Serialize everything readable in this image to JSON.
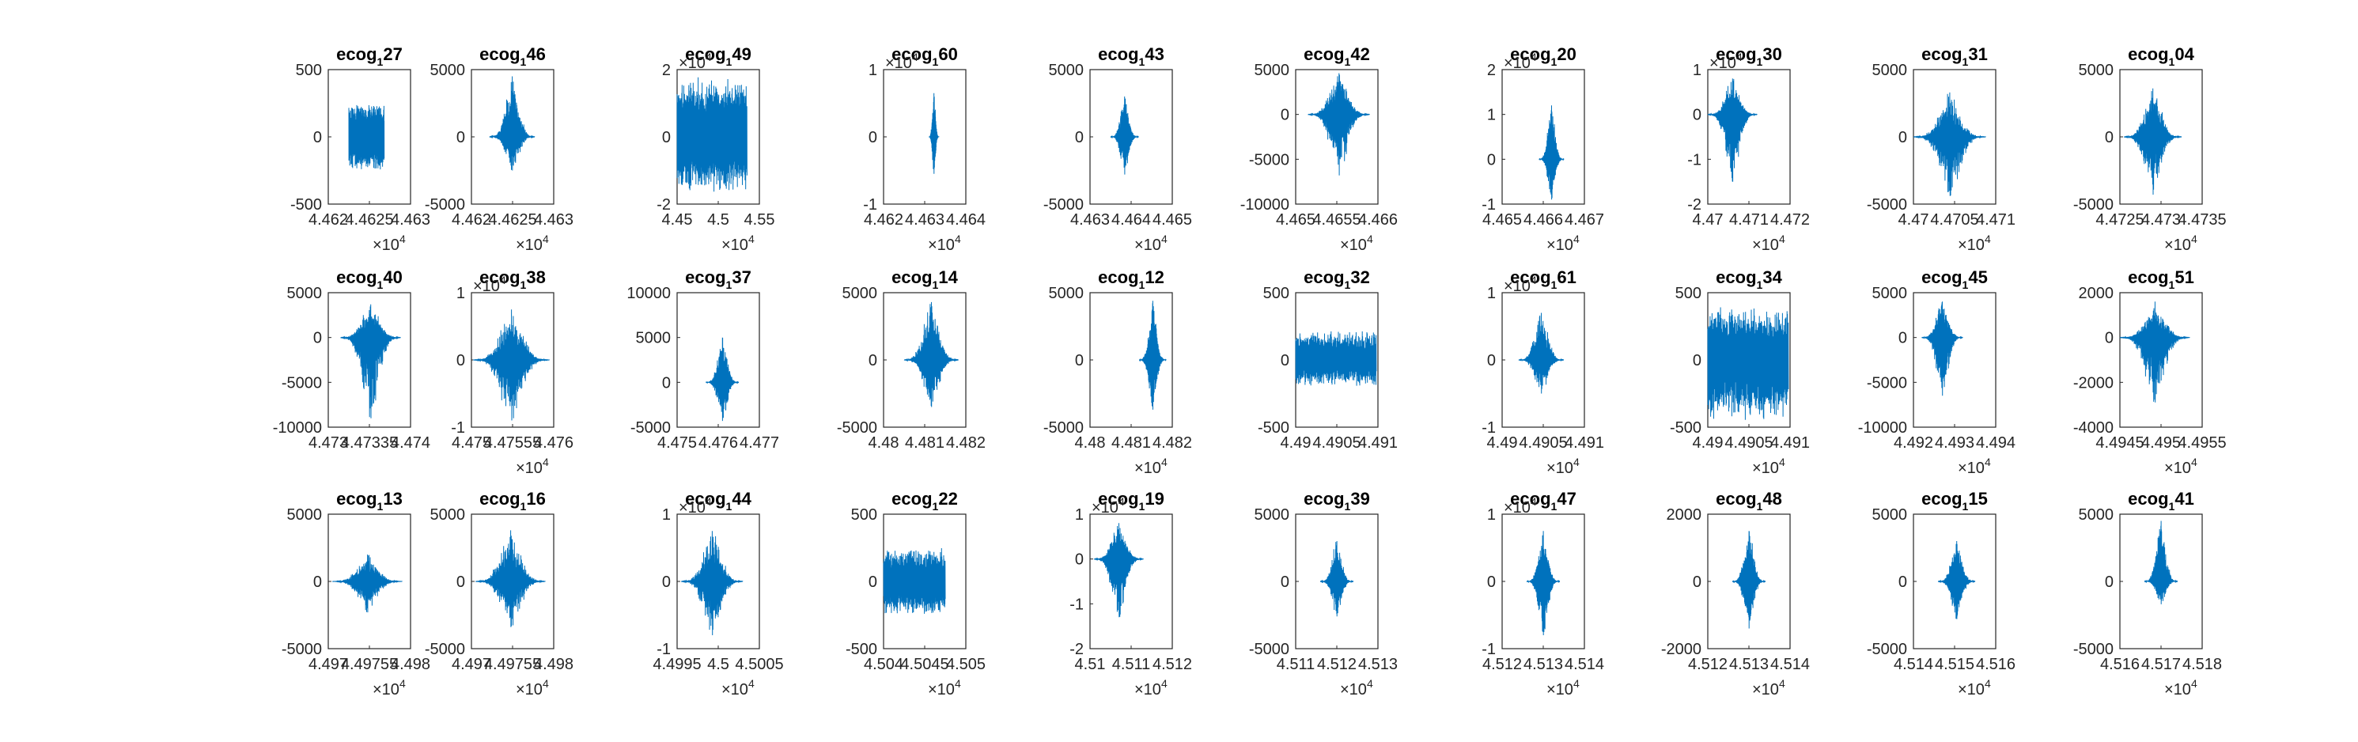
{
  "figure": {
    "line_color": "#0072BD",
    "axis_color": "#262626",
    "background": "#ffffff"
  },
  "chart_data": [
    {
      "type": "line",
      "title": "ecog_1 27",
      "title_base": "ecog",
      "title_sub": "1",
      "title_suffix": "27",
      "xlim": [
        4.462,
        4.463
      ],
      "ylim": [
        -500,
        500
      ],
      "xticks": [
        "4.462",
        "4.4625",
        "4.463"
      ],
      "yticks": [
        "-500",
        "0",
        "500"
      ],
      "x_multiplier": "10^4",
      "y_multiplier": "",
      "signal": {
        "x_range": [
          4.46225,
          4.46268
        ],
        "amplitude": [
          250,
          250
        ],
        "kind": "noise"
      }
    },
    {
      "type": "line",
      "title": "ecog_1 46",
      "title_base": "ecog",
      "title_sub": "1",
      "title_suffix": "46",
      "xlim": [
        4.462,
        4.463
      ],
      "ylim": [
        -5000,
        5000
      ],
      "xticks": [
        "4.462",
        "4.4625",
        "4.463"
      ],
      "yticks": [
        "-5000",
        "0",
        "5000"
      ],
      "x_multiplier": "10^4",
      "y_multiplier": "",
      "signal": {
        "x_range": [
          4.46222,
          4.46277
        ],
        "amplitude": [
          4500,
          -2500
        ],
        "kind": "burst"
      }
    },
    {
      "type": "line",
      "title": "ecog_1 49",
      "title_base": "ecog",
      "title_sub": "1",
      "title_suffix": "49",
      "xlim": [
        4.45,
        4.55
      ],
      "ylim": [
        -2,
        2
      ],
      "xticks": [
        "4.45",
        "4.5",
        "4.55"
      ],
      "yticks": [
        "-2",
        "0",
        "2"
      ],
      "x_multiplier": "10^4",
      "y_multiplier": "10^4",
      "signal": {
        "x_range": [
          4.45,
          4.535
        ],
        "amplitude": [
          1.8,
          -1.7
        ],
        "kind": "noise"
      }
    },
    {
      "type": "line",
      "title": "ecog_1 60",
      "title_base": "ecog",
      "title_sub": "1",
      "title_suffix": "60",
      "xlim": [
        4.462,
        4.464
      ],
      "ylim": [
        -1,
        1
      ],
      "xticks": [
        "4.462",
        "4.463",
        "4.464"
      ],
      "yticks": [
        "-1",
        "0",
        "1"
      ],
      "x_multiplier": "10^4",
      "y_multiplier": "10^4",
      "signal": {
        "x_range": [
          4.4631,
          4.46335
        ],
        "amplitude": [
          0.65,
          -0.55
        ],
        "kind": "burst"
      }
    },
    {
      "type": "line",
      "title": "ecog_1 43",
      "title_base": "ecog",
      "title_sub": "1",
      "title_suffix": "43",
      "xlim": [
        4.463,
        4.465
      ],
      "ylim": [
        -5000,
        5000
      ],
      "xticks": [
        "4.463",
        "4.464",
        "4.465"
      ],
      "yticks": [
        "-5000",
        "0",
        "5000"
      ],
      "x_multiplier": "10^4",
      "y_multiplier": "",
      "signal": {
        "x_range": [
          4.4635,
          4.46418
        ],
        "amplitude": [
          3000,
          -2800
        ],
        "kind": "burst"
      }
    },
    {
      "type": "line",
      "title": "ecog_1 42",
      "title_base": "ecog",
      "title_sub": "1",
      "title_suffix": "42",
      "xlim": [
        4.465,
        4.466
      ],
      "ylim": [
        -10000,
        5000
      ],
      "xticks": [
        "4.465",
        "4.4655",
        "4.466"
      ],
      "yticks": [
        "-10000",
        "-5000",
        "0",
        "5000"
      ],
      "x_multiplier": "10^4",
      "y_multiplier": "",
      "signal": {
        "x_range": [
          4.46515,
          4.4659
        ],
        "amplitude": [
          4600,
          -6800
        ],
        "kind": "burst"
      }
    },
    {
      "type": "line",
      "title": "ecog_1 20",
      "title_base": "ecog",
      "title_sub": "1",
      "title_suffix": "20",
      "xlim": [
        4.465,
        4.467
      ],
      "ylim": [
        -1,
        2
      ],
      "xticks": [
        "4.465",
        "4.466",
        "4.467"
      ],
      "yticks": [
        "-1",
        "0",
        "1",
        "2"
      ],
      "x_multiplier": "10^4",
      "y_multiplier": "10^4",
      "signal": {
        "x_range": [
          4.4659,
          4.4665
        ],
        "amplitude": [
          1.2,
          -0.9
        ],
        "kind": "burst"
      }
    },
    {
      "type": "line",
      "title": "ecog_1 30",
      "title_base": "ecog",
      "title_sub": "1",
      "title_suffix": "30",
      "xlim": [
        4.47,
        4.472
      ],
      "ylim": [
        -2,
        1
      ],
      "xticks": [
        "4.47",
        "4.471",
        "4.472"
      ],
      "yticks": [
        "-2",
        "-1",
        "0",
        "1"
      ],
      "x_multiplier": "10^4",
      "y_multiplier": "10^4",
      "signal": {
        "x_range": [
          4.47,
          4.4712
        ],
        "amplitude": [
          0.8,
          -1.5
        ],
        "kind": "burst"
      }
    },
    {
      "type": "line",
      "title": "ecog_1 31",
      "title_base": "ecog",
      "title_sub": "1",
      "title_suffix": "31",
      "xlim": [
        4.47,
        4.471
      ],
      "ylim": [
        -5000,
        5000
      ],
      "xticks": [
        "4.47",
        "4.4705",
        "4.471"
      ],
      "yticks": [
        "-5000",
        "0",
        "5000"
      ],
      "x_multiplier": "10^4",
      "y_multiplier": "",
      "signal": {
        "x_range": [
          4.47,
          4.47088
        ],
        "amplitude": [
          3300,
          -4400
        ],
        "kind": "burst"
      }
    },
    {
      "type": "line",
      "title": "ecog_1 04",
      "title_base": "ecog",
      "title_sub": "1",
      "title_suffix": "04",
      "xlim": [
        4.4725,
        4.4735
      ],
      "ylim": [
        -5000,
        5000
      ],
      "xticks": [
        "4.4725",
        "4.473",
        "4.4735"
      ],
      "yticks": [
        "-5000",
        "0",
        "5000"
      ],
      "x_multiplier": "10^4",
      "y_multiplier": "",
      "signal": {
        "x_range": [
          4.47255,
          4.47325
        ],
        "amplitude": [
          3600,
          -4300
        ],
        "kind": "burst"
      }
    },
    {
      "type": "line",
      "title": "ecog_1 40",
      "title_base": "ecog",
      "title_sub": "1",
      "title_suffix": "40",
      "xlim": [
        4.473,
        4.474
      ],
      "ylim": [
        -10000,
        5000
      ],
      "xticks": [
        "4.473",
        "4.47335",
        "4.474"
      ],
      "yticks": [
        "-10000",
        "-5000",
        "0",
        "5000"
      ],
      "x_multiplier": "",
      "y_multiplier": "",
      "signal": {
        "x_range": [
          4.47315,
          4.47388
        ],
        "amplitude": [
          3700,
          -9000
        ],
        "kind": "burst"
      }
    },
    {
      "type": "line",
      "title": "ecog_1 38",
      "title_base": "ecog",
      "title_sub": "1",
      "title_suffix": "38",
      "xlim": [
        4.475,
        4.476
      ],
      "ylim": [
        -1,
        1
      ],
      "xticks": [
        "4.475",
        "4.47555",
        "4.476"
      ],
      "yticks": [
        "-1",
        "0",
        "1"
      ],
      "x_multiplier": "10^4",
      "y_multiplier": "10^4",
      "signal": {
        "x_range": [
          4.47502,
          4.47595
        ],
        "amplitude": [
          0.75,
          -0.9
        ],
        "kind": "burst"
      }
    },
    {
      "type": "line",
      "title": "ecog_1 37",
      "title_base": "ecog",
      "title_sub": "1",
      "title_suffix": "37",
      "xlim": [
        4.475,
        4.477
      ],
      "ylim": [
        -5000,
        10000
      ],
      "xticks": [
        "4.475",
        "4.476",
        "4.477"
      ],
      "yticks": [
        "-5000",
        "0",
        "5000",
        "10000"
      ],
      "x_multiplier": "",
      "y_multiplier": "",
      "signal": {
        "x_range": [
          4.4757,
          4.4765
        ],
        "amplitude": [
          5000,
          -4300
        ],
        "kind": "burst"
      }
    },
    {
      "type": "line",
      "title": "ecog_1 14",
      "title_base": "ecog",
      "title_sub": "1",
      "title_suffix": "14",
      "xlim": [
        4.48,
        4.482
      ],
      "ylim": [
        -5000,
        5000
      ],
      "xticks": [
        "4.48",
        "4.481",
        "4.482"
      ],
      "yticks": [
        "-5000",
        "0",
        "5000"
      ],
      "x_multiplier": "",
      "y_multiplier": "",
      "signal": {
        "x_range": [
          4.4805,
          4.48182
        ],
        "amplitude": [
          4300,
          -3500
        ],
        "kind": "burst"
      }
    },
    {
      "type": "line",
      "title": "ecog_1 12",
      "title_base": "ecog",
      "title_sub": "1",
      "title_suffix": "12",
      "xlim": [
        4.48,
        4.482
      ],
      "ylim": [
        -5000,
        5000
      ],
      "xticks": [
        "4.48",
        "4.481",
        "4.482"
      ],
      "yticks": [
        "-5000",
        "0",
        "5000"
      ],
      "x_multiplier": "10^4",
      "y_multiplier": "",
      "signal": {
        "x_range": [
          4.4812,
          4.48185
        ],
        "amplitude": [
          4400,
          -3700
        ],
        "kind": "burst"
      }
    },
    {
      "type": "line",
      "title": "ecog_1 32",
      "title_base": "ecog",
      "title_sub": "1",
      "title_suffix": "32",
      "xlim": [
        4.49,
        4.491
      ],
      "ylim": [
        -500,
        500
      ],
      "xticks": [
        "4.49",
        "4.4905",
        "4.491"
      ],
      "yticks": [
        "-500",
        "0",
        "500"
      ],
      "x_multiplier": "",
      "y_multiplier": "",
      "signal": {
        "x_range": [
          4.49,
          4.49098
        ],
        "amplitude": [
          220,
          -200
        ],
        "kind": "noise"
      }
    },
    {
      "type": "line",
      "title": "ecog_1 61",
      "title_base": "ecog",
      "title_sub": "1",
      "title_suffix": "61",
      "xlim": [
        4.49,
        4.491
      ],
      "ylim": [
        -1,
        1
      ],
      "xticks": [
        "4.49",
        "4.4905",
        "4.491"
      ],
      "yticks": [
        "-1",
        "0",
        "1"
      ],
      "x_multiplier": "10^4",
      "y_multiplier": "10^4",
      "signal": {
        "x_range": [
          4.4902,
          4.49075
        ],
        "amplitude": [
          0.7,
          -0.5
        ],
        "kind": "burst"
      }
    },
    {
      "type": "line",
      "title": "ecog_1 34",
      "title_base": "ecog",
      "title_sub": "1",
      "title_suffix": "34",
      "xlim": [
        4.49,
        4.491
      ],
      "ylim": [
        -500,
        500
      ],
      "xticks": [
        "4.49",
        "4.4905",
        "4.491"
      ],
      "yticks": [
        "-500",
        "0",
        "500"
      ],
      "x_multiplier": "10^4",
      "y_multiplier": "",
      "signal": {
        "x_range": [
          4.49,
          4.49098
        ],
        "amplitude": [
          400,
          -450
        ],
        "kind": "noise"
      }
    },
    {
      "type": "line",
      "title": "ecog_1 45",
      "title_base": "ecog",
      "title_sub": "1",
      "title_suffix": "45",
      "xlim": [
        4.492,
        4.494
      ],
      "ylim": [
        -10000,
        5000
      ],
      "xticks": [
        "4.492",
        "4.493",
        "4.494"
      ],
      "yticks": [
        "-10000",
        "-5000",
        "0",
        "5000"
      ],
      "x_multiplier": "10^4",
      "y_multiplier": "",
      "signal": {
        "x_range": [
          4.4922,
          4.4932
        ],
        "amplitude": [
          4000,
          -6500
        ],
        "kind": "burst"
      }
    },
    {
      "type": "line",
      "title": "ecog_1 51",
      "title_base": "ecog",
      "title_sub": "1",
      "title_suffix": "51",
      "xlim": [
        4.4945,
        4.4955
      ],
      "ylim": [
        -4000,
        2000
      ],
      "xticks": [
        "4.4945",
        "4.495",
        "4.4955"
      ],
      "yticks": [
        "-4000",
        "-2000",
        "0",
        "2000"
      ],
      "x_multiplier": "10^4",
      "y_multiplier": "",
      "signal": {
        "x_range": [
          4.4945,
          4.49535
        ],
        "amplitude": [
          1600,
          -2900
        ],
        "kind": "burst"
      }
    },
    {
      "type": "line",
      "title": "ecog_1 13",
      "title_base": "ecog",
      "title_sub": "1",
      "title_suffix": "13",
      "xlim": [
        4.497,
        4.498
      ],
      "ylim": [
        -5000,
        5000
      ],
      "xticks": [
        "4.497",
        "4.49755",
        "4.498"
      ],
      "yticks": [
        "-5000",
        "0",
        "5000"
      ],
      "x_multiplier": "10^4",
      "y_multiplier": "",
      "signal": {
        "x_range": [
          4.49705,
          4.4979
        ],
        "amplitude": [
          2000,
          -2300
        ],
        "kind": "burst"
      }
    },
    {
      "type": "line",
      "title": "ecog_1 16",
      "title_base": "ecog",
      "title_sub": "1",
      "title_suffix": "16",
      "xlim": [
        4.497,
        4.498
      ],
      "ylim": [
        -5000,
        5000
      ],
      "xticks": [
        "4.497",
        "4.49755",
        "4.498"
      ],
      "yticks": [
        "-5000",
        "0",
        "5000"
      ],
      "x_multiplier": "10^4",
      "y_multiplier": "",
      "signal": {
        "x_range": [
          4.49705,
          4.4979
        ],
        "amplitude": [
          3800,
          -3400
        ],
        "kind": "burst"
      }
    },
    {
      "type": "line",
      "title": "ecog_1 44",
      "title_base": "ecog",
      "title_sub": "1",
      "title_suffix": "44",
      "xlim": [
        4.4995,
        4.5005
      ],
      "ylim": [
        -1,
        1
      ],
      "xticks": [
        "4.4995",
        "4.5",
        "4.5005"
      ],
      "yticks": [
        "-1",
        "0",
        "1"
      ],
      "x_multiplier": "10^4",
      "y_multiplier": "10^4",
      "signal": {
        "x_range": [
          4.49955,
          4.5003
        ],
        "amplitude": [
          0.75,
          -0.8
        ],
        "kind": "burst"
      }
    },
    {
      "type": "line",
      "title": "ecog_1 22",
      "title_base": "ecog",
      "title_sub": "1",
      "title_suffix": "22",
      "xlim": [
        4.504,
        4.505
      ],
      "ylim": [
        -500,
        500
      ],
      "xticks": [
        "4.504",
        "4.5045",
        "4.505"
      ],
      "yticks": [
        "-500",
        "0",
        "500"
      ],
      "x_multiplier": "10^4",
      "y_multiplier": "",
      "signal": {
        "x_range": [
          4.504,
          4.50475
        ],
        "amplitude": [
          250,
          -250
        ],
        "kind": "noise"
      }
    },
    {
      "type": "line",
      "title": "ecog_1 19",
      "title_base": "ecog",
      "title_sub": "1",
      "title_suffix": "19",
      "xlim": [
        4.51,
        4.512
      ],
      "ylim": [
        -2,
        1
      ],
      "xticks": [
        "4.51",
        "4.511",
        "4.512"
      ],
      "yticks": [
        "-2",
        "-1",
        "0",
        "1"
      ],
      "x_multiplier": "10^4",
      "y_multiplier": "10^4",
      "signal": {
        "x_range": [
          4.5101,
          4.5113
        ],
        "amplitude": [
          0.8,
          -1.3
        ],
        "kind": "burst"
      }
    },
    {
      "type": "line",
      "title": "ecog_1 39",
      "title_base": "ecog",
      "title_sub": "1",
      "title_suffix": "39",
      "xlim": [
        4.511,
        4.513
      ],
      "ylim": [
        -5000,
        5000
      ],
      "xticks": [
        "4.511",
        "4.512",
        "4.513"
      ],
      "yticks": [
        "-5000",
        "0",
        "5000"
      ],
      "x_multiplier": "10^4",
      "y_multiplier": "",
      "signal": {
        "x_range": [
          4.5116,
          4.5124
        ],
        "amplitude": [
          3000,
          -2600
        ],
        "kind": "burst"
      }
    },
    {
      "type": "line",
      "title": "ecog_1 47",
      "title_base": "ecog",
      "title_sub": "1",
      "title_suffix": "47",
      "xlim": [
        4.512,
        4.514
      ],
      "ylim": [
        -1,
        1
      ],
      "xticks": [
        "4.512",
        "4.513",
        "4.514"
      ],
      "yticks": [
        "-1",
        "0",
        "1"
      ],
      "x_multiplier": "10^4",
      "y_multiplier": "10^4",
      "signal": {
        "x_range": [
          4.5126,
          4.5134
        ],
        "amplitude": [
          0.75,
          -0.8
        ],
        "kind": "burst"
      }
    },
    {
      "type": "line",
      "title": "ecog_1 48",
      "title_base": "ecog",
      "title_sub": "1",
      "title_suffix": "48",
      "xlim": [
        4.512,
        4.514
      ],
      "ylim": [
        -2000,
        2000
      ],
      "xticks": [
        "4.512",
        "4.513",
        "4.514"
      ],
      "yticks": [
        "-2000",
        "0",
        "2000"
      ],
      "x_multiplier": "10^4",
      "y_multiplier": "",
      "signal": {
        "x_range": [
          4.5126,
          4.5134
        ],
        "amplitude": [
          1500,
          -1400
        ],
        "kind": "burst"
      }
    },
    {
      "type": "line",
      "title": "ecog_1 15",
      "title_base": "ecog",
      "title_sub": "1",
      "title_suffix": "15",
      "xlim": [
        4.514,
        4.516
      ],
      "ylim": [
        -5000,
        5000
      ],
      "xticks": [
        "4.514",
        "4.515",
        "4.516"
      ],
      "yticks": [
        "-5000",
        "0",
        "5000"
      ],
      "x_multiplier": "10^4",
      "y_multiplier": "",
      "signal": {
        "x_range": [
          4.5146,
          4.5155
        ],
        "amplitude": [
          3000,
          -2800
        ],
        "kind": "burst"
      }
    },
    {
      "type": "line",
      "title": "ecog_1 41",
      "title_base": "ecog",
      "title_sub": "1",
      "title_suffix": "41",
      "xlim": [
        4.516,
        4.518
      ],
      "ylim": [
        -5000,
        5000
      ],
      "xticks": [
        "4.516",
        "4.517",
        "4.518"
      ],
      "yticks": [
        "-5000",
        "0",
        "5000"
      ],
      "x_multiplier": "10^4",
      "y_multiplier": "",
      "signal": {
        "x_range": [
          4.5166,
          4.5174
        ],
        "amplitude": [
          4500,
          -1700
        ],
        "kind": "burst"
      }
    }
  ]
}
